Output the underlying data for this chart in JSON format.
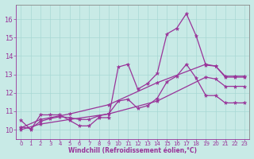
{
  "title": "",
  "xlabel": "Windchill (Refroidissement éolien,°C)",
  "ylabel": "",
  "bg_color": "#c8eae6",
  "line_color": "#993399",
  "grid_color": "#a8d8d4",
  "xlim": [
    -0.5,
    23.5
  ],
  "ylim": [
    9.5,
    16.8
  ],
  "xticks": [
    0,
    1,
    2,
    3,
    4,
    5,
    6,
    7,
    8,
    9,
    10,
    11,
    12,
    13,
    14,
    15,
    16,
    17,
    18,
    19,
    20,
    21,
    22,
    23
  ],
  "yticks": [
    10,
    11,
    12,
    13,
    14,
    15,
    16
  ],
  "series": [
    {
      "x": [
        0,
        1,
        2,
        3,
        4,
        5,
        6,
        7,
        8,
        9,
        10,
        11,
        12,
        13,
        14,
        15,
        16,
        17,
        18,
        19,
        20,
        21,
        22,
        23
      ],
      "y": [
        10.5,
        10.0,
        10.8,
        10.8,
        10.8,
        10.5,
        10.2,
        10.2,
        10.65,
        10.65,
        13.4,
        13.55,
        12.2,
        12.5,
        13.05,
        15.2,
        15.5,
        16.3,
        15.1,
        13.5,
        13.45,
        12.9,
        12.9,
        12.9
      ],
      "lw": 0.9
    },
    {
      "x": [
        0,
        1,
        2,
        3,
        4,
        5,
        6,
        7,
        8,
        9,
        10,
        11,
        12,
        13,
        14,
        15,
        16,
        17,
        18,
        19,
        20,
        21,
        22,
        23
      ],
      "y": [
        10.15,
        10.05,
        10.45,
        10.6,
        10.7,
        10.65,
        10.55,
        10.55,
        10.75,
        10.85,
        11.55,
        11.65,
        11.15,
        11.3,
        11.7,
        12.6,
        12.9,
        13.55,
        12.8,
        11.85,
        11.85,
        11.45,
        11.45,
        11.45
      ],
      "lw": 0.9
    },
    {
      "x": [
        0,
        2,
        5,
        9,
        14,
        19,
        20,
        21,
        22,
        23
      ],
      "y": [
        10.1,
        10.55,
        10.85,
        11.35,
        12.55,
        13.55,
        13.45,
        12.85,
        12.85,
        12.85
      ],
      "lw": 0.9
    },
    {
      "x": [
        0,
        2,
        5,
        9,
        14,
        19,
        20,
        21,
        22,
        23
      ],
      "y": [
        10.0,
        10.3,
        10.55,
        10.85,
        11.55,
        12.85,
        12.75,
        12.35,
        12.35,
        12.35
      ],
      "lw": 0.9
    }
  ]
}
